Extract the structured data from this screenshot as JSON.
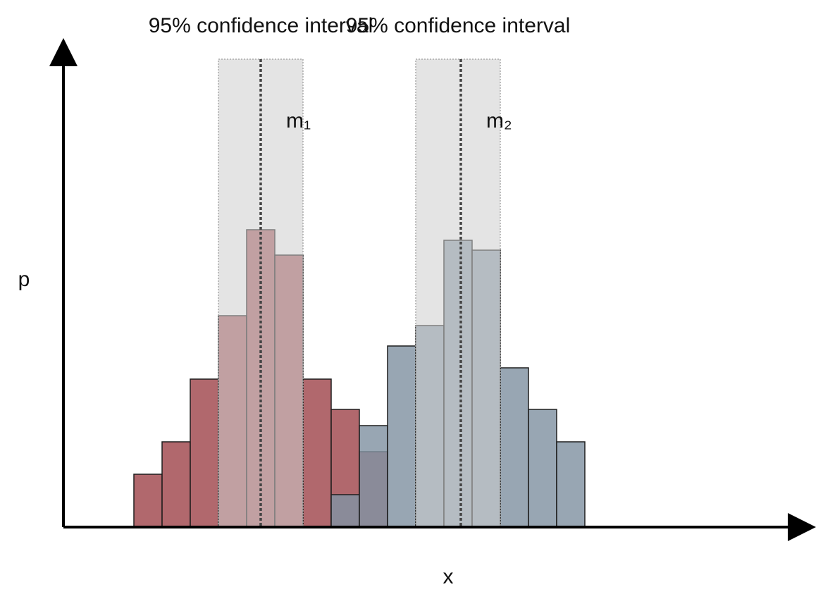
{
  "chart_data": {
    "type": "histogram",
    "x_label": "x",
    "y_label": "p",
    "xlim": [
      -2.5,
      24
    ],
    "ylim": [
      0,
      686
    ],
    "series": [
      {
        "color": "#a0474d",
        "bins": [
          0,
          1,
          2,
          3,
          4,
          5,
          6,
          7,
          8,
          9
        ],
        "values": [
          75,
          121,
          210,
          300,
          422,
          386,
          210,
          167,
          107
        ]
      },
      {
        "color": "#8193a2",
        "bins": [
          7,
          8,
          9,
          10,
          11,
          12,
          13,
          14,
          15,
          16
        ],
        "values": [
          46,
          144,
          257,
          286,
          407,
          393,
          226,
          167,
          121
        ]
      }
    ],
    "intervals": [
      {
        "label": "95% confidence interval",
        "range": [
          3,
          6
        ],
        "mean": 4.5,
        "mean_label": "m₁"
      },
      {
        "label": "95% confidence interval",
        "range": [
          10,
          13
        ],
        "mean": 11.6,
        "mean_label": "m₂"
      }
    ]
  }
}
